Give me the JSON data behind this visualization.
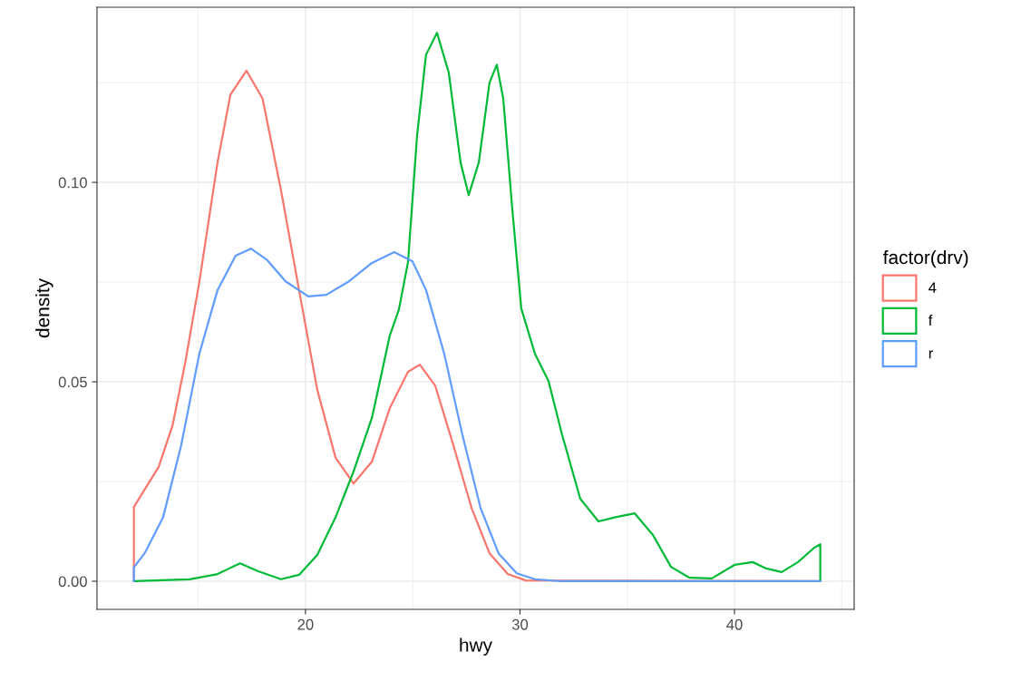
{
  "chart_data": {
    "type": "line",
    "xlabel": "hwy",
    "ylabel": "density",
    "legend_title": "factor(drv)",
    "legend": "right",
    "grid": true,
    "xlim": [
      10.28,
      45.58
    ],
    "ylim": [
      -0.00705,
      0.1439
    ],
    "xticks": [
      20,
      30,
      40
    ],
    "yticks": [
      {
        "value": 0,
        "label": "0.00"
      },
      {
        "value": 0.05,
        "label": "0.05"
      },
      {
        "value": 0.1,
        "label": "0.10"
      }
    ],
    "series": [
      {
        "name": "4",
        "color": "#f8766d",
        "x": [
          12,
          12,
          12.5,
          13.15,
          13.8,
          14.4,
          15.05,
          15.9,
          16.5,
          17.25,
          18.0,
          18.86,
          19.7,
          20.55,
          21.4,
          22.24,
          23.1,
          23.93,
          24.78,
          25.33,
          26.05,
          26.9,
          27.74,
          28.58,
          29.43,
          30.27,
          44
        ],
        "values": [
          0,
          0.0186,
          0.023,
          0.0286,
          0.039,
          0.055,
          0.075,
          0.105,
          0.122,
          0.128,
          0.121,
          0.098,
          0.073,
          0.048,
          0.031,
          0.0245,
          0.03,
          0.0434,
          0.0525,
          0.0543,
          0.049,
          0.034,
          0.0184,
          0.007,
          0.0018,
          0.0002,
          0
        ]
      },
      {
        "name": "f",
        "color": "#00ba38",
        "x": [
          12,
          14.6,
          15.9,
          16.95,
          17.8,
          18.86,
          19.7,
          20.55,
          21.4,
          22.24,
          23.1,
          23.93,
          24.35,
          24.78,
          25.2,
          25.62,
          26.13,
          26.68,
          27.23,
          27.61,
          28.08,
          28.58,
          28.92,
          29.22,
          29.64,
          30.06,
          30.7,
          31.33,
          31.97,
          32.81,
          33.66,
          34.5,
          35.35,
          36.2,
          37.04,
          37.89,
          38.94,
          40,
          40.85,
          41.48,
          42.2,
          42.96,
          43.72,
          44,
          44
        ],
        "values": [
          0,
          0.0005,
          0.0018,
          0.0045,
          0.0025,
          0.0005,
          0.0016,
          0.0066,
          0.016,
          0.0275,
          0.041,
          0.0616,
          0.068,
          0.08,
          0.1116,
          0.132,
          0.1375,
          0.1275,
          0.105,
          0.0968,
          0.105,
          0.125,
          0.1295,
          0.121,
          0.0934,
          0.0684,
          0.057,
          0.0502,
          0.0366,
          0.0207,
          0.015,
          0.0161,
          0.017,
          0.0116,
          0.0036,
          0.0009,
          0.0007,
          0.0041,
          0.0048,
          0.0032,
          0.0023,
          0.0048,
          0.0084,
          0.0093,
          0
        ]
      },
      {
        "name": "r",
        "color": "#619cff",
        "x": [
          12,
          12,
          12.5,
          13.36,
          14.2,
          15.05,
          15.9,
          16.74,
          17.46,
          18.22,
          19.07,
          20.13,
          20.97,
          22.03,
          23.1,
          24.14,
          24.99,
          25.62,
          26.47,
          27.32,
          28.16,
          29.0,
          29.85,
          30.7,
          31.97,
          44
        ],
        "values": [
          0,
          0.0035,
          0.007,
          0.016,
          0.034,
          0.057,
          0.073,
          0.0816,
          0.0834,
          0.0805,
          0.0752,
          0.0714,
          0.0718,
          0.0752,
          0.0798,
          0.0825,
          0.0802,
          0.073,
          0.057,
          0.0366,
          0.0184,
          0.007,
          0.002,
          0.0005,
          0,
          0
        ]
      }
    ]
  }
}
